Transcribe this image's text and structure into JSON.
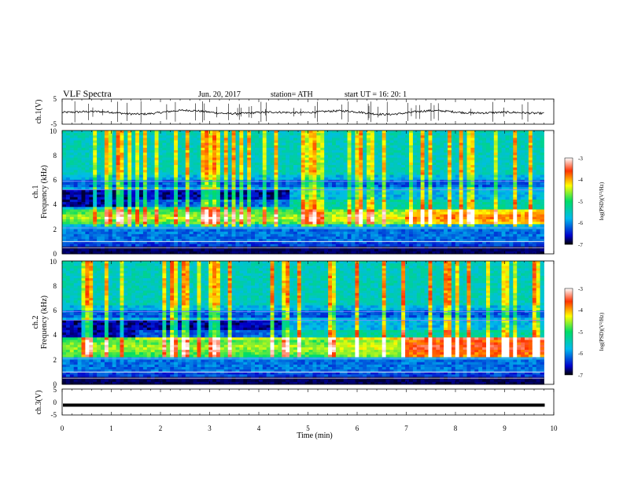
{
  "header": {
    "title": "VLF  Spectra",
    "date": "Jun. 20, 2017",
    "station": "station= ATH",
    "start": "start  UT  =    16: 20: 1"
  },
  "chart_data": [
    {
      "type": "line",
      "panel": "ch1-waveform",
      "ylabel": "ch.1(V)",
      "ylim": [
        -5,
        5
      ],
      "yticks": [
        "5",
        "-5"
      ],
      "xlim": [
        0,
        10
      ],
      "color": "#000000"
    },
    {
      "type": "heatmap",
      "panel": "ch1-spectrogram",
      "ylabel": "ch.1\nFrequency  (kHz)",
      "xlim": [
        0,
        10
      ],
      "ylim": [
        0,
        10
      ],
      "yticks": [
        "0",
        "2",
        "4",
        "6",
        "8",
        "10"
      ],
      "data_extent_min": 9.8,
      "colorbar": {
        "label": "log(PSD)(V²/Hz)",
        "range": [
          -7,
          -3
        ],
        "ticks": [
          "-3",
          "-4",
          "-5",
          "-6",
          "-7"
        ],
        "colors": [
          "#000000",
          "#0000cc",
          "#00bbee",
          "#00dd66",
          "#ffff00",
          "#ff3300",
          "#ffffff"
        ]
      },
      "features": [
        {
          "name": "emission-band",
          "f_low_khz": 2.3,
          "f_high_khz": 3.6,
          "stronger_after_min": 7
        }
      ]
    },
    {
      "type": "heatmap",
      "panel": "ch2-spectrogram",
      "ylabel": "ch.2\nFrequency  (kHz)",
      "xlim": [
        0,
        10
      ],
      "ylim": [
        0,
        10
      ],
      "yticks": [
        "0",
        "2",
        "4",
        "6",
        "8",
        "10"
      ],
      "data_extent_min": 9.8,
      "colorbar": {
        "label": "log(PSD)(V²/Hz)",
        "range": [
          -7,
          -3
        ],
        "ticks": [
          "-3",
          "-4",
          "-5",
          "-6",
          "-7"
        ],
        "colors": [
          "#000000",
          "#0000cc",
          "#00bbee",
          "#00dd66",
          "#ffff00",
          "#ff3300",
          "#ffffff"
        ]
      },
      "features": [
        {
          "name": "emission-band",
          "f_low_khz": 2.2,
          "f_high_khz": 3.8,
          "stronger_after_min": 7
        }
      ]
    },
    {
      "type": "line",
      "panel": "ch3-waveform",
      "ylabel": "ch.3(V)",
      "ylim": [
        -5,
        5
      ],
      "yticks": [
        "5",
        "0",
        "-5"
      ],
      "xlim": [
        0,
        10
      ],
      "xlabel": "Time  (min)",
      "xticks": [
        "0",
        "1",
        "2",
        "3",
        "4",
        "5",
        "6",
        "7",
        "8",
        "9",
        "10"
      ],
      "constant_value_v": -1.2,
      "color": "#000000"
    }
  ]
}
